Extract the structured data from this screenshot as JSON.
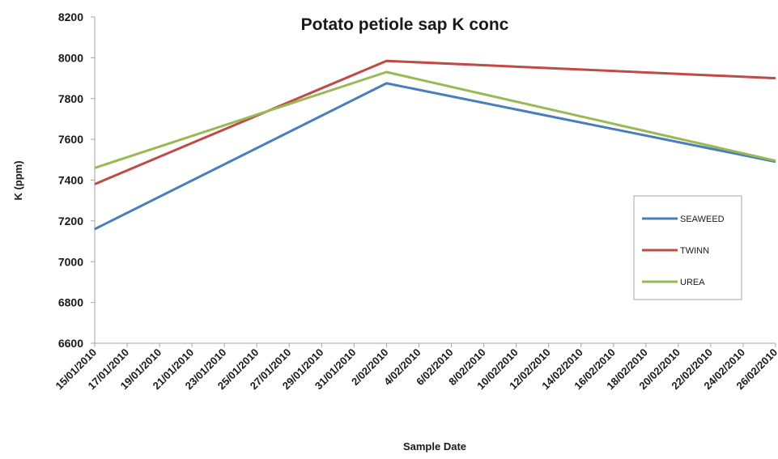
{
  "chart_data": {
    "type": "line",
    "title": "Potato petiole sap K conc",
    "xlabel": "Sample Date",
    "ylabel": "K (ppm)",
    "ylim": [
      6600,
      8200
    ],
    "yticks": [
      6600,
      6800,
      7000,
      7200,
      7400,
      7600,
      7800,
      8000,
      8200
    ],
    "x_tick_labels": [
      "15/01/2010",
      "17/01/2010",
      "19/01/2010",
      "21/01/2010",
      "23/01/2010",
      "25/01/2010",
      "27/01/2010",
      "29/01/2010",
      "31/01/2010",
      "2/02/2010",
      "4/02/2010",
      "6/02/2010",
      "8/02/2010",
      "10/02/2010",
      "12/02/2010",
      "14/02/2010",
      "16/02/2010",
      "18/02/2010",
      "20/02/2010",
      "22/02/2010",
      "24/02/2010",
      "26/02/2010"
    ],
    "x": [
      "15/01/2010",
      "2/02/2010",
      "26/02/2010"
    ],
    "series": [
      {
        "name": "SEAWEED",
        "color": "#4a7ebb",
        "values": [
          7160,
          7875,
          7490
        ]
      },
      {
        "name": "TWINN",
        "color": "#be4b48",
        "values": [
          7380,
          7985,
          7900
        ]
      },
      {
        "name": "UREA",
        "color": "#98b954",
        "values": [
          7460,
          7930,
          7495
        ]
      }
    ],
    "grid": false,
    "legend": "right"
  }
}
